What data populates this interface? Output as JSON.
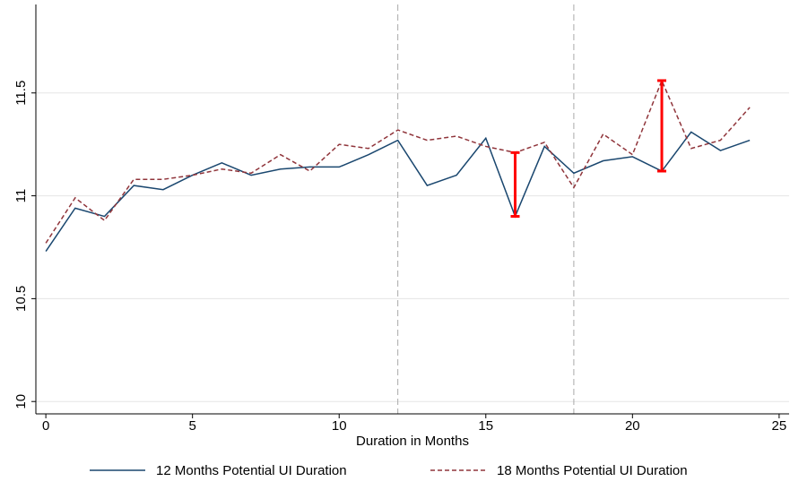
{
  "chart_data": {
    "type": "line",
    "x_label": "Duration in Months",
    "x": [
      0,
      1,
      2,
      3,
      4,
      5,
      6,
      7,
      8,
      9,
      10,
      11,
      12,
      13,
      14,
      15,
      16,
      17,
      18,
      19,
      20,
      21,
      22,
      23,
      24
    ],
    "series": [
      {
        "name": "12 Months Potential UI Duration",
        "color": "#1a476f",
        "dash": "solid",
        "values": [
          10.73,
          10.94,
          10.9,
          11.05,
          11.03,
          11.1,
          11.16,
          11.1,
          11.13,
          11.14,
          11.14,
          11.2,
          11.27,
          11.05,
          11.1,
          11.28,
          10.9,
          11.24,
          11.11,
          11.17,
          11.19,
          11.12,
          11.31,
          11.22,
          11.27
        ]
      },
      {
        "name": "18 Months Potential UI Duration",
        "color": "#90353b",
        "dash": "dashed",
        "values": [
          10.77,
          10.99,
          10.88,
          11.08,
          11.08,
          11.1,
          11.13,
          11.11,
          11.2,
          11.12,
          11.25,
          11.23,
          11.32,
          11.27,
          11.29,
          11.24,
          11.21,
          11.26,
          11.04,
          11.3,
          11.2,
          11.56,
          11.23,
          11.27,
          11.43
        ]
      }
    ],
    "highlight_x": [
      16,
      21
    ],
    "highlight_color": "#ff0000",
    "vlines": [
      12,
      18
    ],
    "xlim": [
      -0.34,
      25.34
    ],
    "ylim": [
      9.94,
      11.93
    ],
    "xticks": [
      0,
      5,
      10,
      15,
      20,
      25
    ],
    "yticks": [
      10,
      10.5,
      11,
      11.5
    ],
    "grid": true,
    "legend": "bottom"
  }
}
